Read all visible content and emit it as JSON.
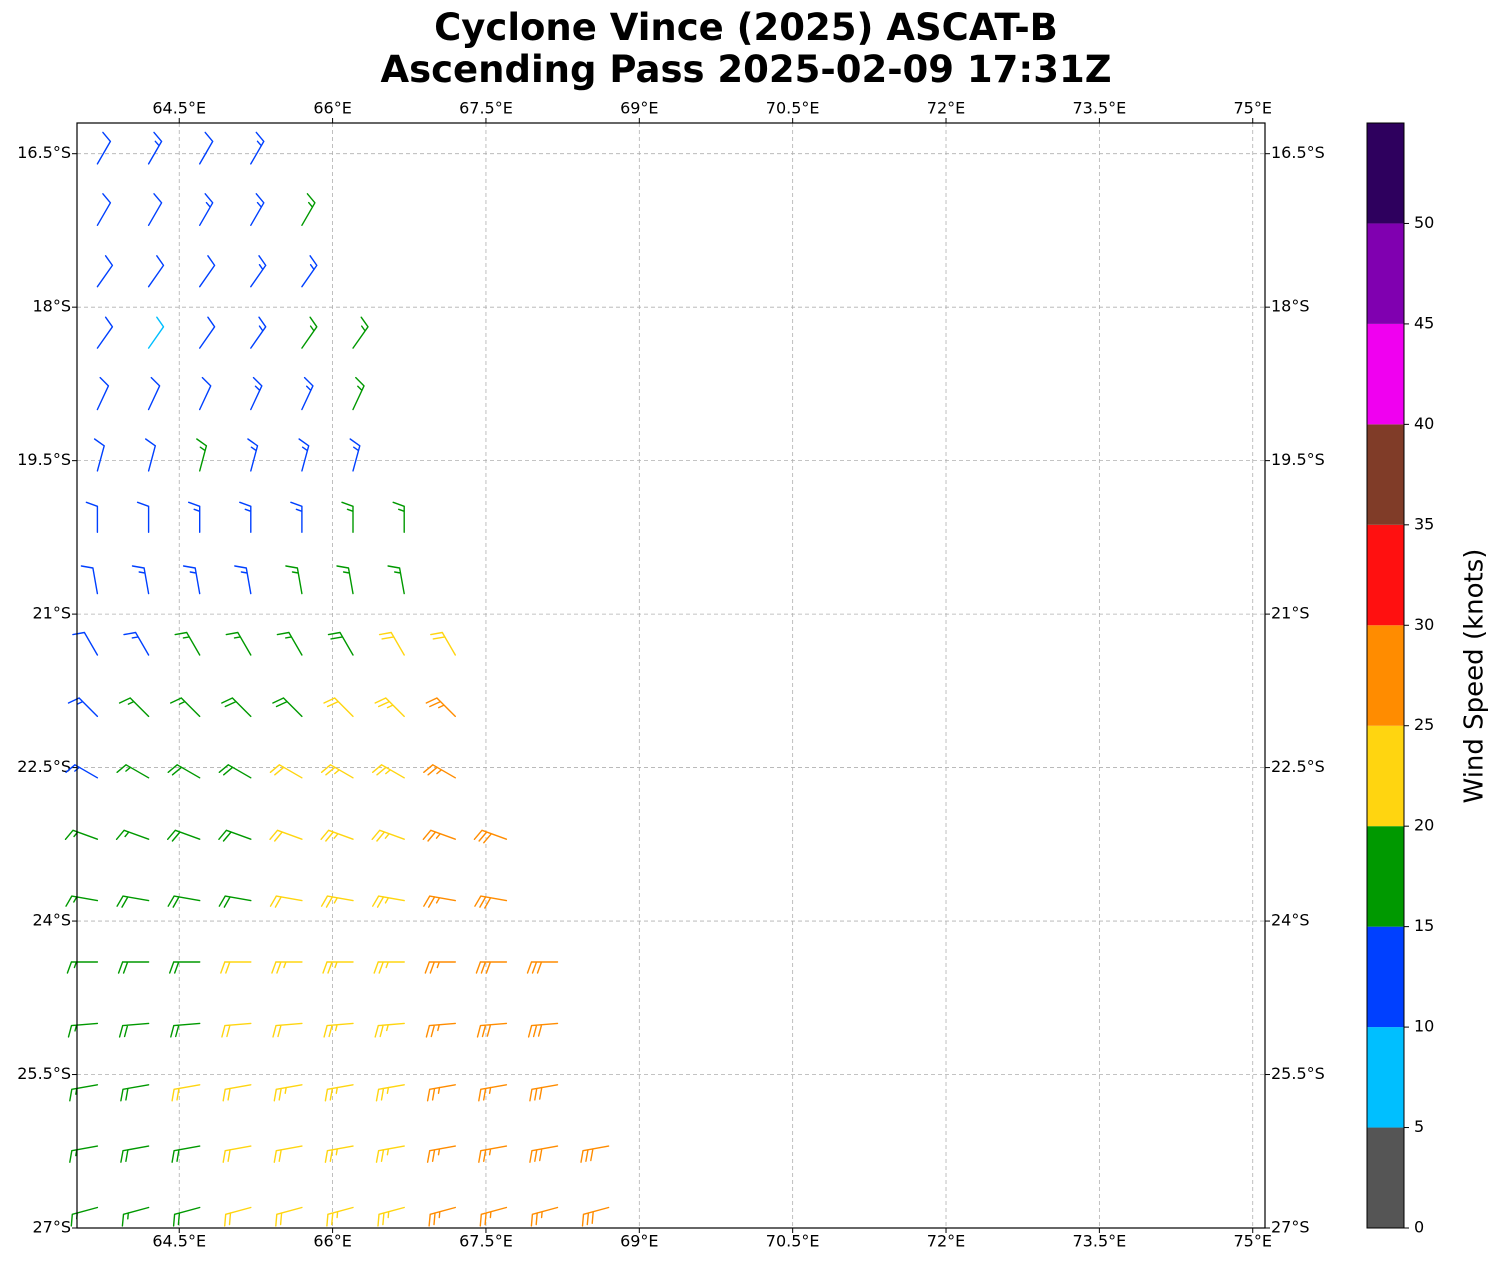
{
  "chart_data": {
    "type": "wind-barb-map",
    "title": "Cyclone Vince (2025) ASCAT-B",
    "subtitle": "Ascending Pass 2025-02-09 17:31Z",
    "xlim": [
      63.5,
      75.12
    ],
    "ylim": [
      -27,
      -16.2
    ],
    "grid": true,
    "xticks": [
      {
        "value": 64.5,
        "label": "64.5°E"
      },
      {
        "value": 66,
        "label": "66°E"
      },
      {
        "value": 67.5,
        "label": "67.5°E"
      },
      {
        "value": 69,
        "label": "69°E"
      },
      {
        "value": 70.5,
        "label": "70.5°E"
      },
      {
        "value": 72,
        "label": "72°E"
      },
      {
        "value": 73.5,
        "label": "73.5°E"
      },
      {
        "value": 75,
        "label": "75°E"
      }
    ],
    "yticks": [
      {
        "value": -16.5,
        "label": "16.5°S"
      },
      {
        "value": -18,
        "label": "18°S"
      },
      {
        "value": -19.5,
        "label": "19.5°S"
      },
      {
        "value": -21,
        "label": "21°S"
      },
      {
        "value": -22.5,
        "label": "22.5°S"
      },
      {
        "value": -24,
        "label": "24°S"
      },
      {
        "value": -25.5,
        "label": "25.5°S"
      },
      {
        "value": -27,
        "label": "27°S"
      }
    ],
    "colorbar": {
      "label": "Wind Speed (knots)",
      "bounds": [
        0,
        5,
        10,
        15,
        20,
        25,
        30,
        35,
        40,
        45,
        50,
        55
      ],
      "colors": [
        "#555555",
        "#00bfff",
        "#0040ff",
        "#009900",
        "#ffd510",
        "#ff8c00",
        "#ff1010",
        "#803c28",
        "#f000f0",
        "#8000b0",
        "#2e005e"
      ],
      "ticks": [
        0,
        5,
        10,
        15,
        20,
        25,
        30,
        35,
        40,
        45,
        50
      ]
    },
    "barbs": {
      "lon": [
        63.7,
        64.2,
        64.7,
        65.2,
        63.7,
        64.2,
        64.7,
        65.2,
        65.7,
        63.7,
        64.2,
        64.7,
        65.2,
        65.7,
        63.7,
        64.2,
        64.7,
        65.2,
        65.7,
        66.2,
        63.7,
        64.2,
        64.7,
        65.2,
        65.7,
        66.2,
        63.7,
        64.2,
        64.7,
        65.2,
        65.7,
        66.2,
        63.7,
        64.2,
        64.7,
        65.2,
        65.7,
        66.2,
        66.7,
        63.7,
        64.2,
        64.7,
        65.2,
        65.7,
        66.2,
        66.7,
        63.7,
        64.2,
        64.7,
        65.2,
        65.7,
        66.2,
        66.7,
        67.2,
        63.7,
        64.2,
        64.7,
        65.2,
        65.7,
        66.2,
        66.7,
        67.2,
        63.7,
        64.2,
        64.7,
        65.2,
        65.7,
        66.2,
        66.7,
        67.2,
        63.7,
        64.2,
        64.7,
        65.2,
        65.7,
        66.2,
        66.7,
        67.2,
        67.7,
        63.7,
        64.2,
        64.7,
        65.2,
        65.7,
        66.2,
        66.7,
        67.2,
        67.7,
        63.7,
        64.2,
        64.7,
        65.2,
        65.7,
        66.2,
        66.7,
        67.2,
        67.7,
        68.2,
        63.7,
        64.2,
        64.7,
        65.2,
        65.7,
        66.2,
        66.7,
        67.2,
        67.7,
        68.2,
        63.7,
        64.2,
        64.7,
        65.2,
        65.7,
        66.2,
        66.7,
        67.2,
        67.7,
        68.2,
        63.7,
        64.2,
        64.7,
        65.2,
        65.7,
        66.2,
        66.7,
        67.2,
        67.7,
        68.2,
        68.7,
        63.7,
        64.2,
        64.7,
        65.2,
        65.7,
        66.2,
        66.7,
        67.2,
        67.7,
        68.2,
        68.7
      ],
      "lat": [
        -16.6,
        -16.6,
        -16.6,
        -16.6,
        -17.2,
        -17.2,
        -17.2,
        -17.2,
        -17.2,
        -17.8,
        -17.8,
        -17.8,
        -17.8,
        -17.8,
        -18.4,
        -18.4,
        -18.4,
        -18.4,
        -18.4,
        -18.4,
        -19.0,
        -19.0,
        -19.0,
        -19.0,
        -19.0,
        -19.0,
        -19.6,
        -19.6,
        -19.6,
        -19.6,
        -19.6,
        -19.6,
        -20.2,
        -20.2,
        -20.2,
        -20.2,
        -20.2,
        -20.2,
        -20.2,
        -20.8,
        -20.8,
        -20.8,
        -20.8,
        -20.8,
        -20.8,
        -20.8,
        -21.4,
        -21.4,
        -21.4,
        -21.4,
        -21.4,
        -21.4,
        -21.4,
        -21.4,
        -22.0,
        -22.0,
        -22.0,
        -22.0,
        -22.0,
        -22.0,
        -22.0,
        -22.0,
        -22.6,
        -22.6,
        -22.6,
        -22.6,
        -22.6,
        -22.6,
        -22.6,
        -22.6,
        -23.2,
        -23.2,
        -23.2,
        -23.2,
        -23.2,
        -23.2,
        -23.2,
        -23.2,
        -23.2,
        -23.8,
        -23.8,
        -23.8,
        -23.8,
        -23.8,
        -23.8,
        -23.8,
        -23.8,
        -23.8,
        -24.4,
        -24.4,
        -24.4,
        -24.4,
        -24.4,
        -24.4,
        -24.4,
        -24.4,
        -24.4,
        -24.4,
        -25.0,
        -25.0,
        -25.0,
        -25.0,
        -25.0,
        -25.0,
        -25.0,
        -25.0,
        -25.0,
        -25.0,
        -25.6,
        -25.6,
        -25.6,
        -25.6,
        -25.6,
        -25.6,
        -25.6,
        -25.6,
        -25.6,
        -25.6,
        -26.2,
        -26.2,
        -26.2,
        -26.2,
        -26.2,
        -26.2,
        -26.2,
        -26.2,
        -26.2,
        -26.2,
        -26.2,
        -26.8,
        -26.8,
        -26.8,
        -26.8,
        -26.8,
        -26.8,
        -26.8,
        -26.8,
        -26.8,
        -26.8,
        -26.8
      ],
      "speed": [
        12,
        13,
        12,
        14,
        12,
        12,
        13,
        14,
        16,
        11,
        12,
        12,
        13,
        13,
        12,
        8,
        12,
        13,
        16,
        17,
        11,
        12,
        12,
        13,
        14,
        17,
        11,
        12,
        16,
        13,
        14,
        14,
        12,
        12,
        13,
        14,
        14,
        17,
        17,
        12,
        13,
        14,
        14,
        17,
        17,
        17,
        12,
        14,
        16,
        17,
        17,
        18,
        22,
        22,
        13,
        16,
        17,
        18,
        19,
        22,
        23,
        26,
        14,
        17,
        18,
        18,
        22,
        23,
        24,
        27,
        17,
        17,
        18,
        19,
        22,
        23,
        24,
        27,
        28,
        17,
        18,
        18,
        19,
        22,
        23,
        24,
        27,
        28,
        17,
        18,
        19,
        22,
        23,
        23,
        24,
        27,
        28,
        28,
        17,
        18,
        19,
        22,
        22,
        23,
        24,
        27,
        28,
        28,
        17,
        18,
        22,
        22,
        23,
        24,
        24,
        26,
        27,
        28,
        17,
        18,
        19,
        22,
        22,
        23,
        24,
        26,
        27,
        28,
        28,
        17,
        17,
        18,
        21,
        22,
        23,
        24,
        26,
        27,
        27,
        28
      ],
      "dir": [
        30,
        30,
        30,
        30,
        30,
        30,
        30,
        30,
        30,
        35,
        35,
        35,
        35,
        35,
        35,
        35,
        35,
        35,
        35,
        35,
        25,
        25,
        25,
        25,
        25,
        25,
        15,
        15,
        15,
        15,
        15,
        15,
        0,
        0,
        0,
        0,
        0,
        0,
        0,
        350,
        350,
        350,
        350,
        350,
        350,
        350,
        330,
        330,
        330,
        330,
        330,
        330,
        330,
        330,
        315,
        315,
        315,
        315,
        315,
        315,
        315,
        315,
        300,
        300,
        300,
        300,
        300,
        300,
        300,
        300,
        290,
        290,
        290,
        290,
        290,
        290,
        290,
        290,
        290,
        280,
        280,
        280,
        280,
        280,
        280,
        280,
        280,
        280,
        270,
        270,
        270,
        270,
        270,
        270,
        270,
        270,
        270,
        270,
        265,
        265,
        265,
        265,
        265,
        265,
        265,
        265,
        265,
        265,
        260,
        260,
        260,
        260,
        260,
        260,
        260,
        260,
        260,
        260,
        260,
        260,
        260,
        260,
        260,
        260,
        260,
        260,
        260,
        260,
        260,
        255,
        255,
        255,
        255,
        255,
        255,
        255,
        255,
        255,
        255,
        255
      ]
    }
  }
}
